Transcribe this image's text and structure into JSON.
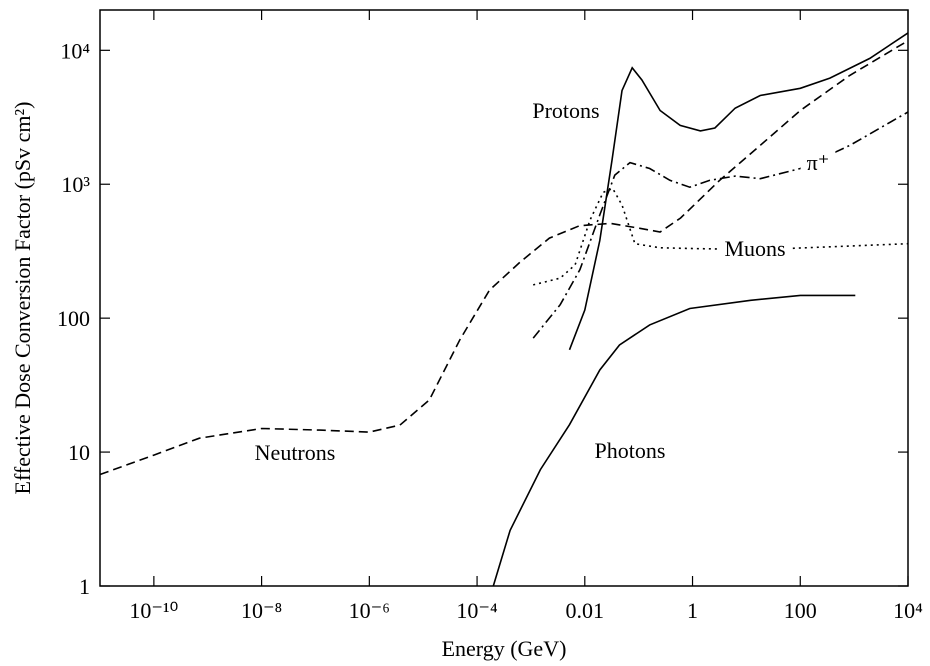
{
  "chart_data": {
    "type": "line",
    "xlabel": "Energy  (GeV)",
    "ylabel": "Effective Dose Conversion Factor (pSv cm²)",
    "xscale": "log",
    "yscale": "log",
    "xlim": [
      1e-11,
      10000
    ],
    "ylim": [
      1,
      20000
    ],
    "xticks": [
      {
        "value": 1e-10,
        "label": "10⁻¹⁰"
      },
      {
        "value": 1e-08,
        "label": "10⁻⁸"
      },
      {
        "value": 1e-06,
        "label": "10⁻⁶"
      },
      {
        "value": 0.0001,
        "label": "10⁻⁴"
      },
      0.01,
      1,
      100,
      {
        "value": 10000,
        "label": "10⁴"
      }
    ],
    "yticks": [
      1,
      10,
      100,
      {
        "value": 1000,
        "label": "10³"
      },
      {
        "value": 10000,
        "label": "10⁴"
      }
    ],
    "series": [
      {
        "name": "Neutrons",
        "color": "#000000",
        "dash": "dashed",
        "x": [
          1e-11,
          1e-10,
          7e-10,
          1e-08,
          1.2e-07,
          1e-06,
          3.7e-06,
          1.3e-05,
          4.8e-05,
          0.00017,
          0.00063,
          0.0022,
          0.008,
          0.03,
          0.1,
          0.25,
          0.6,
          3.2,
          18,
          100,
          830,
          10000
        ],
        "values": [
          6.8,
          9.5,
          12.7,
          15,
          14.6,
          14.1,
          15.9,
          24.5,
          69,
          162,
          262,
          396,
          490,
          510,
          470,
          440,
          560,
          1070,
          1950,
          3550,
          6500,
          11800
        ]
      },
      {
        "name": "Protons",
        "color": "#000000",
        "dash": "solid",
        "x": [
          0.0052,
          0.01,
          0.019,
          0.032,
          0.049,
          0.076,
          0.115,
          0.25,
          0.59,
          1.4,
          2.6,
          6.2,
          18,
          100,
          355,
          1950,
          10000
        ],
        "values": [
          58,
          115,
          380,
          1510,
          5000,
          7400,
          6000,
          3550,
          2750,
          2500,
          2630,
          3700,
          4600,
          5200,
          6200,
          8700,
          13500
        ]
      },
      {
        "name": "π⁺",
        "color": "#000000",
        "dash": "dashdot",
        "x": [
          0.0011,
          0.0035,
          0.0081,
          0.019,
          0.036,
          0.069,
          0.16,
          0.38,
          0.89,
          2.1,
          6.2,
          18,
          100,
          830,
          10000
        ],
        "values": [
          71,
          126,
          230,
          590,
          1170,
          1450,
          1310,
          1070,
          950,
          1070,
          1150,
          1100,
          1310,
          1950,
          3460
        ]
      },
      {
        "name": "Muons",
        "color": "#000000",
        "dash": "dotted",
        "x": [
          0.0011,
          0.0035,
          0.0066,
          0.0125,
          0.022,
          0.033,
          0.049,
          0.085,
          0.25,
          1.4,
          18,
          10000
        ],
        "values": [
          177,
          199,
          250,
          540,
          870,
          930,
          700,
          360,
          335,
          330,
          325,
          360
        ]
      },
      {
        "name": "Photons",
        "color": "#000000",
        "dash": "solid",
        "x": [
          0.0002,
          0.00041,
          0.0015,
          0.0052,
          0.019,
          0.044,
          0.16,
          0.89,
          12,
          100,
          1050
        ],
        "values": [
          1,
          2.6,
          7.4,
          16,
          41,
          63,
          89,
          118,
          136,
          148,
          148
        ]
      }
    ]
  }
}
